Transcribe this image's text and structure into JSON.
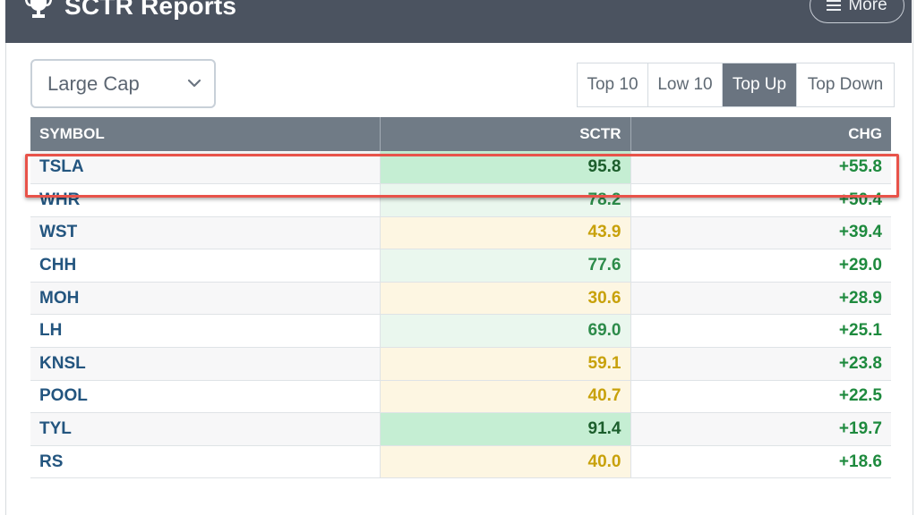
{
  "header": {
    "title": "SCTR Reports",
    "more_label": "More"
  },
  "select": {
    "value": "Large Cap"
  },
  "tabs": [
    {
      "label": "Top 10",
      "active": false
    },
    {
      "label": "Low 10",
      "active": false
    },
    {
      "label": "Top Up",
      "active": true
    },
    {
      "label": "Top Down",
      "active": false
    }
  ],
  "table": {
    "columns": [
      "SYMBOL",
      "SCTR",
      "CHG"
    ],
    "rows": [
      {
        "symbol": "TSLA",
        "sctr": "95.8",
        "chg": "+55.8"
      },
      {
        "symbol": "WHR",
        "sctr": "78.2",
        "chg": "+50.4"
      },
      {
        "symbol": "WST",
        "sctr": "43.9",
        "chg": "+39.4"
      },
      {
        "symbol": "CHH",
        "sctr": "77.6",
        "chg": "+29.0"
      },
      {
        "symbol": "MOH",
        "sctr": "30.6",
        "chg": "+28.9"
      },
      {
        "symbol": "LH",
        "sctr": "69.0",
        "chg": "+25.1"
      },
      {
        "symbol": "KNSL",
        "sctr": "59.1",
        "chg": "+23.8"
      },
      {
        "symbol": "POOL",
        "sctr": "40.7",
        "chg": "+22.5"
      },
      {
        "symbol": "TYL",
        "sctr": "91.4",
        "chg": "+19.7"
      },
      {
        "symbol": "RS",
        "sctr": "40.0",
        "chg": "+18.6"
      }
    ]
  },
  "colors": {
    "header_bg": "#4b5360",
    "sctr_strong_bg": "#c5eed3",
    "sctr_strong_text": "#1c5e2c",
    "sctr_good_bg": "#eaf7ee",
    "sctr_good_text": "#2d8b4a",
    "sctr_mid_bg": "#fdf6e2",
    "sctr_mid_text": "#c8a10a",
    "highlight_border": "#e8534a"
  },
  "highlighted_row": "TSLA"
}
